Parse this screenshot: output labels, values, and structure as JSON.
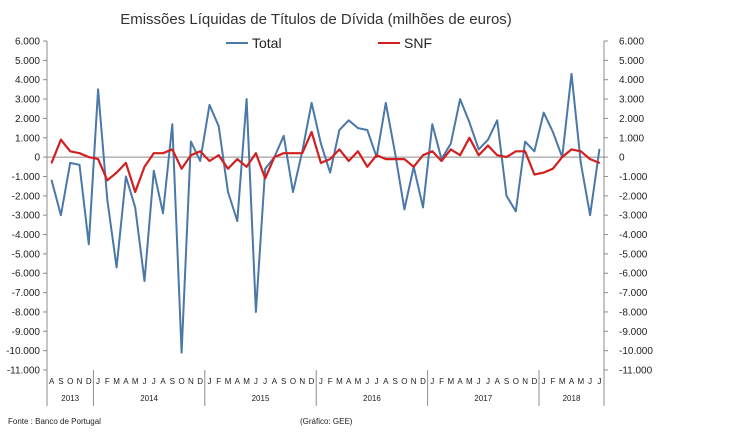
{
  "chart_data": {
    "type": "line",
    "title": "Emissões Líquidas de Títulos de Dívida (milhões de euros)",
    "ylim": [
      -11000,
      6000
    ],
    "yticks": [
      6000,
      5000,
      4000,
      3000,
      2000,
      1000,
      0,
      -1000,
      -2000,
      -3000,
      -4000,
      -5000,
      -6000,
      -7000,
      -8000,
      -9000,
      -10000,
      -11000
    ],
    "ytick_labels": [
      "6.000",
      "5.000",
      "4.000",
      "3.000",
      "2.000",
      "1.000",
      "0",
      "-1.000",
      "-2.000",
      "-3.000",
      "-4.000",
      "-5.000",
      "-6.000",
      "-7.000",
      "-8.000",
      "-9.000",
      "-10.000",
      "-11.000"
    ],
    "right_axis": true,
    "grid": false,
    "legend_position": "top",
    "month_labels": [
      "A",
      "S",
      "O",
      "N",
      "D",
      "J",
      "F",
      "M",
      "A",
      "M",
      "J",
      "J",
      "A",
      "S",
      "O",
      "N",
      "D",
      "J",
      "F",
      "M",
      "A",
      "M",
      "J",
      "J",
      "A",
      "S",
      "O",
      "N",
      "D",
      "J",
      "F",
      "M",
      "A",
      "M",
      "J",
      "J",
      "A",
      "S",
      "O",
      "N",
      "D",
      "J",
      "F",
      "M",
      "A",
      "M",
      "J",
      "J",
      "A",
      "S",
      "O",
      "N",
      "D",
      "J",
      "F",
      "M",
      "A",
      "M",
      "J",
      "J"
    ],
    "year_groups": [
      {
        "label": "2013",
        "start": 0,
        "end": 4
      },
      {
        "label": "2014",
        "start": 5,
        "end": 16
      },
      {
        "label": "2015",
        "start": 17,
        "end": 28
      },
      {
        "label": "2016",
        "start": 29,
        "end": 40
      },
      {
        "label": "2017",
        "start": 41,
        "end": 52
      },
      {
        "label": "2018",
        "start": 53,
        "end": 59
      }
    ],
    "series": [
      {
        "name": "Total",
        "color": "#4a78a8",
        "values": [
          -1200,
          -3000,
          -300,
          -400,
          -4500,
          3500,
          -2200,
          -5700,
          -1000,
          -2600,
          -6400,
          -700,
          -2900,
          1700,
          -10100,
          800,
          -200,
          2700,
          1600,
          -1800,
          -3300,
          3000,
          -8000,
          -600,
          0,
          1100,
          -1800,
          300,
          2800,
          700,
          -800,
          1400,
          1900,
          1500,
          1400,
          0,
          2800,
          200,
          -2700,
          -500,
          -2600,
          1700,
          -100,
          700,
          3000,
          1800,
          400,
          900,
          1900,
          -2000,
          -2800,
          800,
          300,
          2300,
          1300,
          0,
          4300,
          -300,
          -3000,
          400
        ]
      },
      {
        "name": "SNF",
        "color": "#d22020",
        "values": [
          -300,
          900,
          300,
          200,
          0,
          -100,
          -1200,
          -800,
          -300,
          -1800,
          -500,
          200,
          200,
          400,
          -600,
          100,
          300,
          -200,
          100,
          -600,
          -100,
          -500,
          200,
          -1100,
          0,
          200,
          200,
          200,
          1300,
          -300,
          -100,
          400,
          -200,
          300,
          -500,
          100,
          -100,
          -100,
          -100,
          -500,
          100,
          300,
          -200,
          400,
          100,
          1000,
          100,
          600,
          100,
          0,
          300,
          300,
          -900,
          -800,
          -600,
          0,
          400,
          300,
          -100,
          -300
        ]
      }
    ]
  },
  "footer": {
    "source": "Fonte : Banco de Portugal",
    "credit": "(Gráfico: GEE)"
  }
}
